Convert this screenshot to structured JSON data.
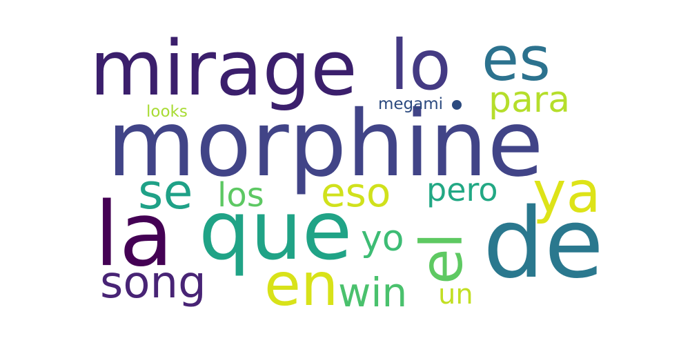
{
  "words": [
    {
      "id": "morphine",
      "text": "morphine",
      "color": "#414487"
    },
    {
      "id": "mirage",
      "text": "mirage",
      "color": "#3b1f6c"
    },
    {
      "id": "lo",
      "text": "lo",
      "color": "#443a83"
    },
    {
      "id": "es",
      "text": "es",
      "color": "#2c728e"
    },
    {
      "id": "para",
      "text": "para",
      "color": "#b5de2b"
    },
    {
      "id": "megami",
      "text": "megami",
      "color": "#2c4a7f"
    },
    {
      "id": "looks",
      "text": "looks",
      "color": "#a8db34"
    },
    {
      "id": "se",
      "text": "se",
      "color": "#1fa187"
    },
    {
      "id": "los",
      "text": "los",
      "color": "#5dc863"
    },
    {
      "id": "eso",
      "text": "eso",
      "color": "#d0e11c"
    },
    {
      "id": "pero",
      "text": "pero",
      "color": "#22a884"
    },
    {
      "id": "ya",
      "text": "ya",
      "color": "#dde318"
    },
    {
      "id": "la",
      "text": "la",
      "color": "#440154"
    },
    {
      "id": "que",
      "text": "que",
      "color": "#20a386"
    },
    {
      "id": "el",
      "text": "el",
      "color": "#5ec962"
    },
    {
      "id": "de",
      "text": "de",
      "color": "#2a788e"
    },
    {
      "id": "yo",
      "text": "yo",
      "color": "#3dbc74"
    },
    {
      "id": "song",
      "text": "song",
      "color": "#482475"
    },
    {
      "id": "en",
      "text": "en",
      "color": "#d8e219"
    },
    {
      "id": "win",
      "text": "win",
      "color": "#4ac16d"
    },
    {
      "id": "un",
      "text": "un",
      "color": "#c2df23"
    }
  ]
}
